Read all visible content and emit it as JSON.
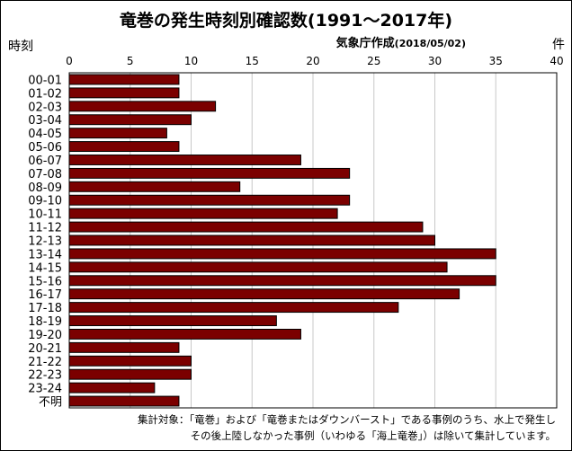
{
  "title": "竜巻の発生時刻別確認数(1991～2017年)",
  "subtitle": {
    "prefix": "気象庁作成",
    "date": "(2018/05/02)"
  },
  "ylabel": "時刻",
  "xunit": "件",
  "note": [
    "集計対象：「竜巻」および「竜巻またはダウンバースト」である事例のうち、水上で発生し",
    "その後上陸しなかった事例（いわゆる「海上竜巻」）は除いて集計しています。"
  ],
  "colors": {
    "bar": "#7b0000",
    "bar_stroke": "#000000",
    "grid": "#c8c8c8"
  },
  "chart_data": {
    "type": "bar",
    "orientation": "horizontal",
    "xlim": [
      0,
      40
    ],
    "xticks": [
      0,
      5,
      10,
      15,
      20,
      25,
      30,
      35,
      40
    ],
    "grid": true,
    "categories": [
      "00-01",
      "01-02",
      "02-03",
      "03-04",
      "04-05",
      "05-06",
      "06-07",
      "07-08",
      "08-09",
      "09-10",
      "10-11",
      "11-12",
      "12-13",
      "13-14",
      "14-15",
      "15-16",
      "16-17",
      "17-18",
      "18-19",
      "19-20",
      "20-21",
      "21-22",
      "22-23",
      "23-24",
      "不明"
    ],
    "values": [
      9,
      9,
      12,
      10,
      8,
      9,
      19,
      23,
      14,
      23,
      22,
      29,
      30,
      35,
      31,
      35,
      32,
      27,
      17,
      19,
      9,
      10,
      10,
      7,
      9
    ]
  }
}
